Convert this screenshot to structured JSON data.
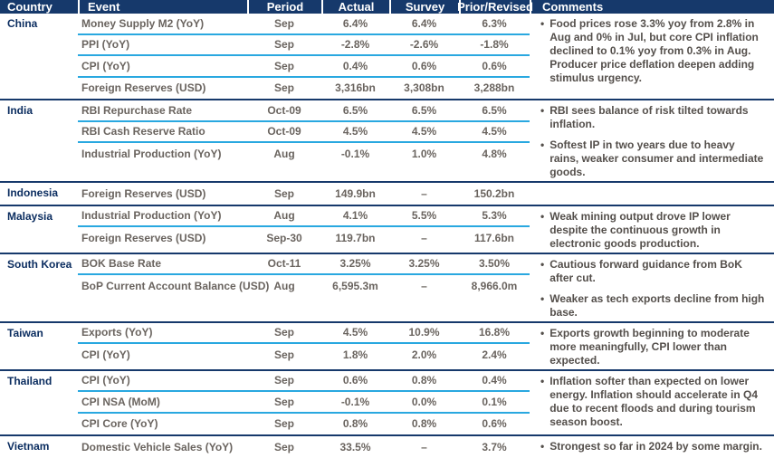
{
  "table": {
    "headers": [
      "Country",
      "Event",
      "Period",
      "Actual",
      "Survey",
      "Prior/Revised",
      "Comments"
    ],
    "groups": [
      {
        "country": "China",
        "rows": [
          {
            "event": "Money Supply M2 (YoY)",
            "period": "Sep",
            "actual": "6.4%",
            "survey": "6.4%",
            "prior": "6.3%"
          },
          {
            "event": "PPI (YoY)",
            "period": "Sep",
            "actual": "-2.8%",
            "survey": "-2.6%",
            "prior": "-1.8%"
          },
          {
            "event": "CPI (YoY)",
            "period": "Sep",
            "actual": "0.4%",
            "survey": "0.6%",
            "prior": "0.6%"
          },
          {
            "event": "Foreign Reserves (USD)",
            "period": "Sep",
            "actual": "3,316bn",
            "survey": "3,308bn",
            "prior": "3,288bn"
          }
        ],
        "comments": [
          "Food prices rose 3.3% yoy from 2.8% in Aug and 0% in Jul, but core CPI inflation declined to 0.1% yoy from 0.3% in Aug.\nProducer price deflation deepen adding stimulus urgency."
        ]
      },
      {
        "country": "India",
        "rows": [
          {
            "event": "RBI Repurchase Rate",
            "period": "Oct-09",
            "actual": "6.5%",
            "survey": "6.5%",
            "prior": "6.5%"
          },
          {
            "event": "RBI Cash Reserve Ratio",
            "period": "Oct-09",
            "actual": "4.5%",
            "survey": "4.5%",
            "prior": "4.5%"
          },
          {
            "event": "Industrial Production (YoY)",
            "period": "Aug",
            "actual": "-0.1%",
            "survey": "1.0%",
            "prior": "4.8%"
          }
        ],
        "comments": [
          "RBI sees balance of risk tilted towards inflation.",
          "Softest IP in two years due to heavy rains, weaker consumer and intermediate goods."
        ]
      },
      {
        "country": "Indonesia",
        "rows": [
          {
            "event": "Foreign Reserves (USD)",
            "period": "Sep",
            "actual": "149.9bn",
            "survey": "–",
            "prior": "150.2bn"
          }
        ],
        "comments": []
      },
      {
        "country": "Malaysia",
        "rows": [
          {
            "event": "Industrial Production (YoY)",
            "period": "Aug",
            "actual": "4.1%",
            "survey": "5.5%",
            "prior": "5.3%"
          },
          {
            "event": "Foreign Reserves (USD)",
            "period": "Sep-30",
            "actual": "119.7bn",
            "survey": "–",
            "prior": "117.6bn"
          }
        ],
        "comments": [
          "Weak mining output drove IP lower despite the continuous growth in electronic goods production."
        ]
      },
      {
        "country": "South Korea",
        "rows": [
          {
            "event": "BOK Base Rate",
            "period": "Oct-11",
            "actual": "3.25%",
            "survey": "3.25%",
            "prior": "3.50%"
          },
          {
            "event": "BoP Current Account Balance (USD)",
            "period": "Aug",
            "actual": "6,595.3m",
            "survey": "–",
            "prior": "8,966.0m"
          }
        ],
        "comments": [
          "Cautious forward guidance from BoK after cut.",
          "Weaker as tech exports decline from high base."
        ]
      },
      {
        "country": "Taiwan",
        "rows": [
          {
            "event": "Exports (YoY)",
            "period": "Sep",
            "actual": "4.5%",
            "survey": "10.9%",
            "prior": "16.8%"
          },
          {
            "event": "CPI (YoY)",
            "period": "Sep",
            "actual": "1.8%",
            "survey": "2.0%",
            "prior": "2.4%"
          }
        ],
        "comments": [
          "Exports growth beginning to moderate more meaningfully, CPI lower than expected."
        ]
      },
      {
        "country": "Thailand",
        "rows": [
          {
            "event": "CPI (YoY)",
            "period": "Sep",
            "actual": "0.6%",
            "survey": "0.8%",
            "prior": "0.4%"
          },
          {
            "event": "CPI NSA (MoM)",
            "period": "Sep",
            "actual": "-0.1%",
            "survey": "0.0%",
            "prior": "0.1%"
          },
          {
            "event": "CPI Core (YoY)",
            "period": "Sep",
            "actual": "0.8%",
            "survey": "0.8%",
            "prior": "0.6%"
          }
        ],
        "comments": [
          "Inflation softer than expected on lower energy. Inflation should accelerate in Q4 due to recent floods and during tourism season boost."
        ]
      },
      {
        "country": "Vietnam",
        "rows": [
          {
            "event": "Domestic Vehicle Sales (YoY)",
            "period": "Sep",
            "actual": "33.5%",
            "survey": "–",
            "prior": "3.7%"
          }
        ],
        "comments": [
          "Strongest so far in 2024 by some margin."
        ]
      }
    ]
  },
  "icons": {
    "bullet": "•"
  },
  "colors": {
    "header_background": "#16396B",
    "country_text": "#0A2C5F",
    "value_text": "#6A645F",
    "comment_text": "#544F4B",
    "row_divider": "#29A8E0"
  }
}
